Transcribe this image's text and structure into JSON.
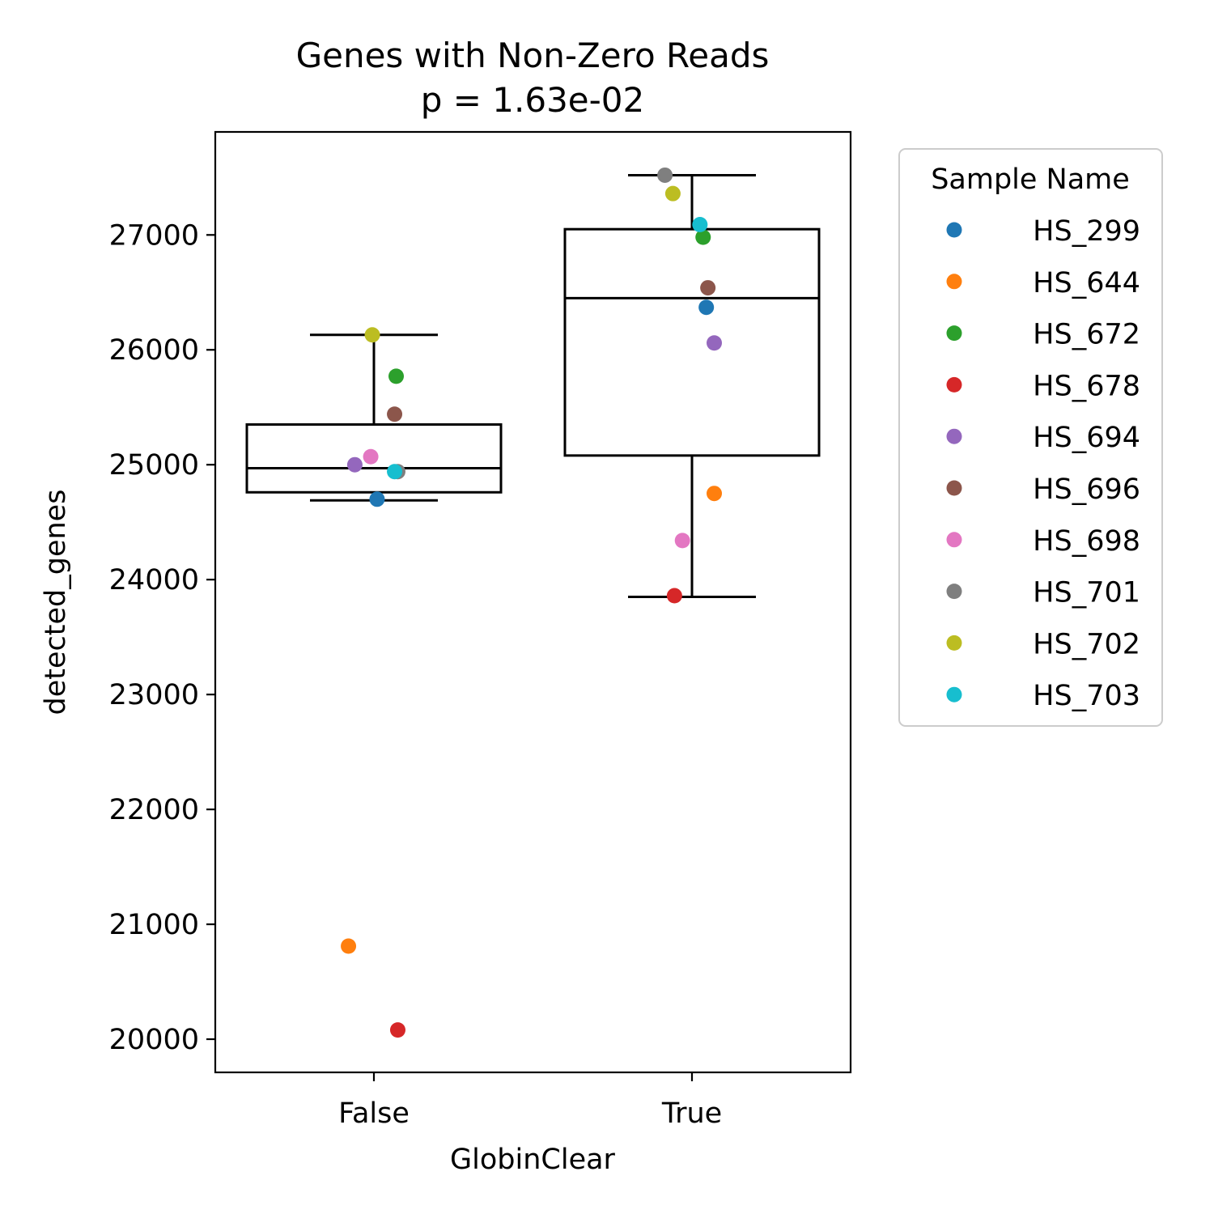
{
  "chart_data": {
    "type": "box-strip",
    "title": "Genes with Non-Zero Reads",
    "subtitle": "p = 1.63e-02",
    "xlabel": "GlobinClear",
    "ylabel": "detected_genes",
    "categories": [
      "False",
      "True"
    ],
    "ylim": [
      19700,
      27900
    ],
    "yticks": [
      20000,
      21000,
      22000,
      23000,
      24000,
      25000,
      26000,
      27000
    ],
    "grid": false,
    "legend": {
      "title": "Sample Name",
      "placement": "outside-right",
      "entries": [
        {
          "name": "HS_299",
          "color": "#1f77b4"
        },
        {
          "name": "HS_644",
          "color": "#ff7f0e"
        },
        {
          "name": "HS_672",
          "color": "#2ca02c"
        },
        {
          "name": "HS_678",
          "color": "#d62728"
        },
        {
          "name": "HS_694",
          "color": "#9467bd"
        },
        {
          "name": "HS_696",
          "color": "#8c564b"
        },
        {
          "name": "HS_698",
          "color": "#e377c2"
        },
        {
          "name": "HS_701",
          "color": "#7f7f7f"
        },
        {
          "name": "HS_702",
          "color": "#bcbd22"
        },
        {
          "name": "HS_703",
          "color": "#17becf"
        }
      ]
    },
    "boxes": [
      {
        "category": "False",
        "whisker_low": 24690,
        "q1": 24760,
        "median": 24970,
        "q3": 25350,
        "whisker_high": 26130
      },
      {
        "category": "True",
        "whisker_low": 23850,
        "q1": 25080,
        "median": 26450,
        "q3": 27050,
        "whisker_high": 27520
      }
    ],
    "points": [
      {
        "category": "False",
        "sample": "HS_299",
        "value": 24700,
        "jitter": 0.01
      },
      {
        "category": "False",
        "sample": "HS_644",
        "value": 20810,
        "jitter": -0.08
      },
      {
        "category": "False",
        "sample": "HS_672",
        "value": 25770,
        "jitter": 0.07
      },
      {
        "category": "False",
        "sample": "HS_678",
        "value": 20080,
        "jitter": 0.075
      },
      {
        "category": "False",
        "sample": "HS_694",
        "value": 25000,
        "jitter": -0.06
      },
      {
        "category": "False",
        "sample": "HS_696",
        "value": 25440,
        "jitter": 0.065
      },
      {
        "category": "False",
        "sample": "HS_698",
        "value": 25070,
        "jitter": -0.01
      },
      {
        "category": "False",
        "sample": "HS_701",
        "value": 24940,
        "jitter": 0.075
      },
      {
        "category": "False",
        "sample": "HS_702",
        "value": 26130,
        "jitter": -0.005
      },
      {
        "category": "False",
        "sample": "HS_703",
        "value": 24940,
        "jitter": 0.065
      },
      {
        "category": "True",
        "sample": "HS_299",
        "value": 26370,
        "jitter": 0.045
      },
      {
        "category": "True",
        "sample": "HS_644",
        "value": 24750,
        "jitter": 0.07
      },
      {
        "category": "True",
        "sample": "HS_672",
        "value": 26980,
        "jitter": 0.035
      },
      {
        "category": "True",
        "sample": "HS_678",
        "value": 23860,
        "jitter": -0.055
      },
      {
        "category": "True",
        "sample": "HS_694",
        "value": 26060,
        "jitter": 0.07
      },
      {
        "category": "True",
        "sample": "HS_696",
        "value": 26540,
        "jitter": 0.05
      },
      {
        "category": "True",
        "sample": "HS_698",
        "value": 24340,
        "jitter": -0.03
      },
      {
        "category": "True",
        "sample": "HS_701",
        "value": 27520,
        "jitter": -0.085
      },
      {
        "category": "True",
        "sample": "HS_702",
        "value": 27360,
        "jitter": -0.06
      },
      {
        "category": "True",
        "sample": "HS_703",
        "value": 27090,
        "jitter": 0.025
      }
    ]
  }
}
